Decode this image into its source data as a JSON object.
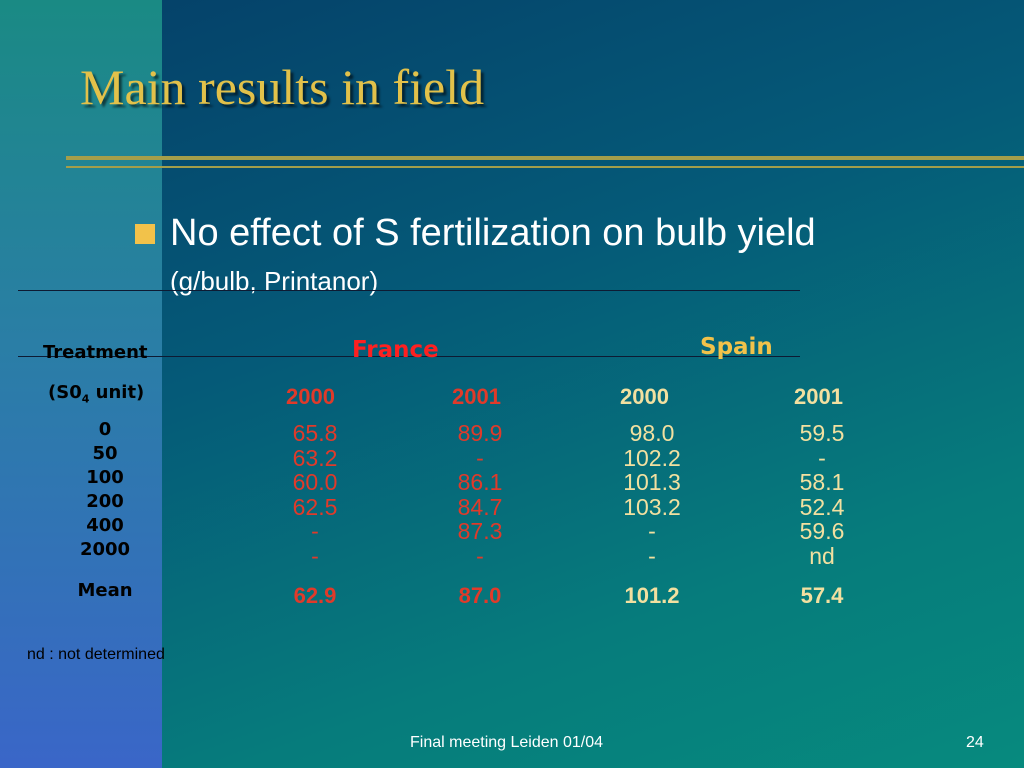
{
  "slide": {
    "title": "Main results in field",
    "bullet": "No effect of S fertilization on bulb yield",
    "bullet_sub": "(g/bulb, Printanor)"
  },
  "table": {
    "treatment_header": "Treatment",
    "unit_header_prefix": "(S0",
    "unit_header_sub": "4",
    "unit_header_suffix": " unit)",
    "countries": [
      {
        "name": "France",
        "color": "#ff2020"
      },
      {
        "name": "Spain",
        "color": "#f2c24a"
      }
    ],
    "years": [
      "2000",
      "2001",
      "2000",
      "2001"
    ],
    "treatments": [
      "0",
      "50",
      "100",
      "200",
      "400",
      "2000"
    ],
    "columns": [
      {
        "color": "#e03a2a",
        "values": [
          "65.8",
          "63.2",
          "60.0",
          "62.5",
          "-",
          "-"
        ],
        "mean": "62.9"
      },
      {
        "color": "#e03a2a",
        "values": [
          "89.9",
          "-",
          "86.1",
          "84.7",
          "87.3",
          "-"
        ],
        "mean": "87.0"
      },
      {
        "color": "#f2e0a0",
        "values": [
          "98.0",
          "102.2",
          "101.3",
          "103.2",
          "-",
          "-"
        ],
        "mean": "101.2"
      },
      {
        "color": "#f2e0a0",
        "values": [
          "59.5",
          "-",
          "58.1",
          "52.4",
          "59.6",
          "nd"
        ],
        "mean": "57.4"
      }
    ],
    "mean_label": "Mean"
  },
  "footnote": "nd : not determined",
  "footer": {
    "text": "Final meeting Leiden 01/04",
    "page": "24"
  }
}
